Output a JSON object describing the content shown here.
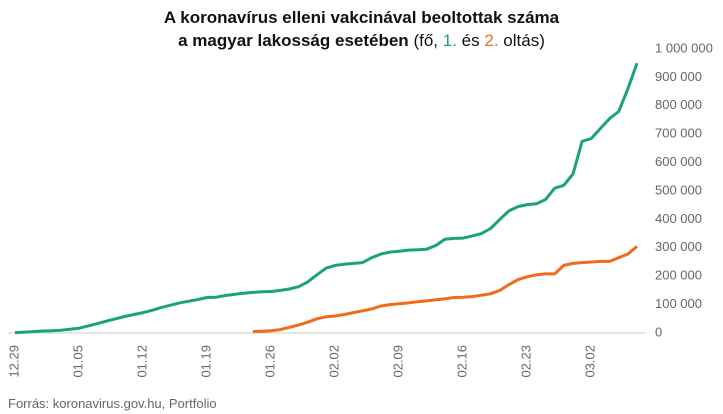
{
  "chart_data": {
    "type": "line",
    "title_line1": "A koronavírus elleni vakcinával beoltottak száma",
    "title_line2": {
      "bold": "a magyar lakosság esetében",
      "open": "(fő,",
      "and": "és",
      "close": "oltás)"
    },
    "source": "Forrás: koronavirus.gov.hu, Portfolio",
    "categories": [
      "12.29",
      null,
      null,
      null,
      null,
      null,
      null,
      "01.05",
      null,
      null,
      null,
      null,
      null,
      null,
      "01.12",
      null,
      null,
      null,
      null,
      null,
      null,
      "01.19",
      null,
      null,
      null,
      null,
      null,
      null,
      "01.26",
      null,
      null,
      null,
      null,
      null,
      null,
      "02.02",
      null,
      null,
      null,
      null,
      null,
      null,
      "02.09",
      null,
      null,
      null,
      null,
      null,
      null,
      "02.16",
      null,
      null,
      null,
      null,
      null,
      null,
      "02.23",
      null,
      null,
      null,
      null,
      null,
      null,
      "03.02",
      null,
      null,
      null,
      null,
      null
    ],
    "series": [
      {
        "name": "1.",
        "color": "#1aa37a",
        "values": [
          1000,
          3000,
          5000,
          7000,
          8000,
          10000,
          13000,
          17000,
          25000,
          33000,
          42000,
          50000,
          58000,
          65000,
          72000,
          80000,
          90000,
          98000,
          106000,
          112000,
          118000,
          125000,
          126000,
          132000,
          136000,
          140000,
          143000,
          145000,
          146000,
          150000,
          155000,
          163000,
          180000,
          205000,
          228000,
          238000,
          242000,
          245000,
          248000,
          265000,
          278000,
          285000,
          288000,
          292000,
          293000,
          295000,
          308000,
          330000,
          333000,
          334000,
          342000,
          350000,
          368000,
          400000,
          430000,
          445000,
          452000,
          455000,
          470000,
          510000,
          520000,
          560000,
          675000,
          685000,
          720000,
          755000,
          780000,
          860000,
          950000
        ]
      },
      {
        "name": "2.",
        "color": "#f26a1b",
        "values": [
          null,
          null,
          null,
          null,
          null,
          null,
          null,
          null,
          null,
          null,
          null,
          null,
          null,
          null,
          null,
          null,
          null,
          null,
          null,
          null,
          null,
          null,
          null,
          null,
          null,
          null,
          5000,
          6000,
          8000,
          12000,
          20000,
          28000,
          38000,
          50000,
          57000,
          60000,
          65000,
          72000,
          78000,
          85000,
          95000,
          100000,
          103000,
          106000,
          110000,
          113000,
          117000,
          120000,
          125000,
          126000,
          128000,
          133000,
          138000,
          150000,
          170000,
          188000,
          198000,
          205000,
          208000,
          208000,
          238000,
          245000,
          248000,
          250000,
          252000,
          252000,
          265000,
          278000,
          305000
        ]
      }
    ],
    "ylim": [
      0,
      1000000
    ],
    "yticks": [
      0,
      {
        "value": 100000,
        "label": "100 000"
      },
      {
        "value": 200000,
        "label": "200 000"
      },
      {
        "value": 300000,
        "label": "300 000"
      },
      {
        "value": 400000,
        "label": "400 000"
      },
      {
        "value": 500000,
        "label": "500 000"
      },
      {
        "value": 600000,
        "label": "600 000"
      },
      {
        "value": 700000,
        "label": "700 000"
      },
      {
        "value": 800000,
        "label": "800 000"
      },
      {
        "value": 900000,
        "label": "900 000"
      },
      {
        "value": 1000000,
        "label": "1 000 000"
      }
    ],
    "grid": false
  }
}
